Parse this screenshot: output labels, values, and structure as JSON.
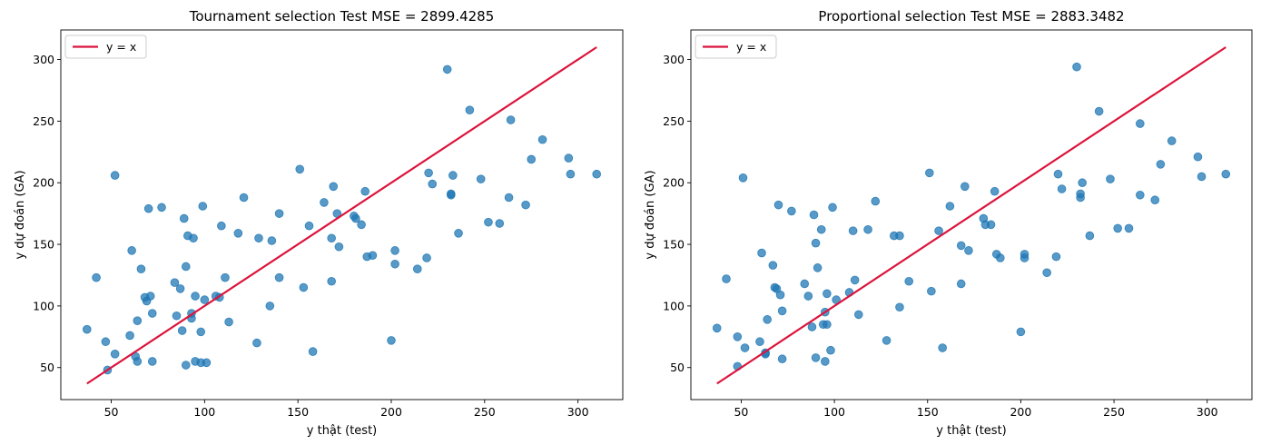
{
  "colors": {
    "points": "#1f77b4",
    "identity_line": "#dc143c",
    "axes": "#000000",
    "legend_border": "#cccccc"
  },
  "chart_data": [
    {
      "type": "scatter",
      "title": "Tournament selection Test MSE = 2899.4285",
      "xlabel": "y thật (test)",
      "ylabel": "y dự đoán (GA)",
      "xlim": [
        23,
        324
      ],
      "ylim": [
        24,
        324
      ],
      "xticks": [
        50,
        100,
        150,
        200,
        250,
        300
      ],
      "yticks": [
        50,
        100,
        150,
        200,
        250,
        300
      ],
      "legend": {
        "position": "top-left",
        "entries": [
          "y = x"
        ]
      },
      "line": {
        "name": "y = x",
        "x": [
          37,
          310
        ],
        "y": [
          37,
          310
        ]
      },
      "x": [
        37,
        42,
        47,
        48,
        52,
        52,
        60,
        61,
        63,
        64,
        64,
        66,
        68,
        69,
        70,
        71,
        72,
        72,
        77,
        84,
        85,
        87,
        88,
        89,
        90,
        90,
        91,
        93,
        93,
        94,
        95,
        95,
        98,
        98,
        99,
        100,
        101,
        106,
        108,
        109,
        111,
        113,
        118,
        121,
        128,
        129,
        135,
        136,
        140,
        140,
        151,
        153,
        156,
        158,
        164,
        168,
        168,
        169,
        171,
        172,
        180,
        181,
        184,
        186,
        187,
        190,
        200,
        202,
        202,
        214,
        219,
        220,
        222,
        232,
        232,
        233,
        236,
        242,
        248,
        252,
        258,
        263,
        264,
        272,
        275,
        281,
        295,
        296,
        310,
        230
      ],
      "y": [
        81,
        123,
        71,
        48,
        206,
        61,
        76,
        145,
        59,
        55,
        88,
        130,
        107,
        104,
        179,
        108,
        94,
        55,
        180,
        119,
        92,
        114,
        80,
        171,
        52,
        132,
        157,
        90,
        94,
        155,
        108,
        55,
        54,
        79,
        181,
        105,
        54,
        108,
        107,
        165,
        123,
        87,
        159,
        188,
        70,
        155,
        100,
        153,
        175,
        123,
        211,
        115,
        165,
        63,
        184,
        155,
        120,
        197,
        175,
        148,
        173,
        171,
        166,
        193,
        140,
        141,
        72,
        145,
        134,
        130,
        139,
        208,
        199,
        190,
        191,
        206,
        159,
        259,
        203,
        168,
        167,
        188,
        251,
        182,
        219,
        235,
        220,
        207,
        207,
        292
      ]
    },
    {
      "type": "scatter",
      "title": "Proportional selection Test MSE = 2883.3482",
      "xlabel": "y thật (test)",
      "ylabel": "y dự đoán (GA)",
      "xlim": [
        23,
        324
      ],
      "ylim": [
        24,
        324
      ],
      "xticks": [
        50,
        100,
        150,
        200,
        250,
        300
      ],
      "yticks": [
        50,
        100,
        150,
        200,
        250,
        300
      ],
      "legend": {
        "position": "top-left",
        "entries": [
          "y = x"
        ]
      },
      "line": {
        "name": "y = x",
        "x": [
          37,
          310
        ],
        "y": [
          37,
          310
        ]
      },
      "x": [
        37,
        42,
        48,
        48,
        51,
        52,
        60,
        61,
        63,
        63,
        64,
        67,
        68,
        69,
        70,
        71,
        72,
        72,
        77,
        84,
        86,
        88,
        89,
        90,
        90,
        91,
        93,
        94,
        95,
        95,
        96,
        96,
        98,
        99,
        101,
        108,
        110,
        111,
        113,
        118,
        122,
        128,
        132,
        135,
        135,
        140,
        151,
        152,
        156,
        158,
        162,
        168,
        168,
        170,
        172,
        180,
        181,
        184,
        186,
        187,
        189,
        200,
        202,
        202,
        214,
        219,
        220,
        222,
        232,
        232,
        233,
        237,
        242,
        248,
        252,
        258,
        264,
        264,
        272,
        275,
        281,
        295,
        297,
        310,
        230
      ],
      "y": [
        82,
        122,
        75,
        51,
        204,
        66,
        71,
        143,
        62,
        61,
        89,
        133,
        115,
        114,
        182,
        109,
        96,
        57,
        177,
        118,
        108,
        83,
        174,
        151,
        58,
        131,
        162,
        85,
        95,
        55,
        110,
        85,
        64,
        180,
        105,
        111,
        161,
        121,
        93,
        162,
        185,
        72,
        157,
        99,
        157,
        120,
        208,
        112,
        161,
        66,
        181,
        149,
        118,
        197,
        145,
        171,
        166,
        166,
        193,
        142,
        139,
        79,
        139,
        142,
        127,
        140,
        207,
        195,
        188,
        191,
        200,
        157,
        258,
        203,
        163,
        163,
        190,
        248,
        186,
        215,
        234,
        221,
        205,
        207,
        294
      ]
    }
  ]
}
